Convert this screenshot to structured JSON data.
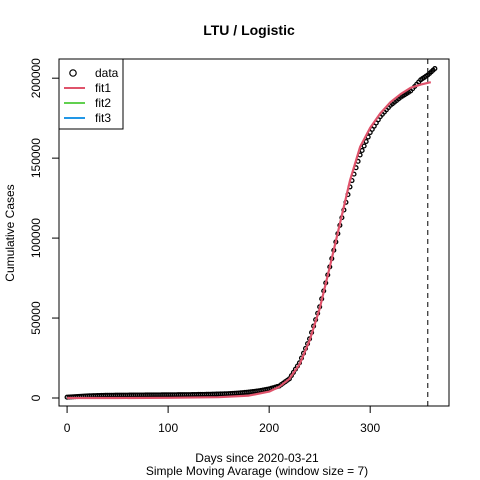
{
  "chart_data": {
    "type": "line",
    "title": "LTU / Logistic",
    "xlabel": "Days since 2020-03-21",
    "xlabel2": "Simple Moving Avarage (window size = 7)",
    "ylabel": "Cumulative Cases",
    "xlim": [
      -8,
      378
    ],
    "ylim": [
      -5000,
      212000
    ],
    "x_ticks": [
      0,
      100,
      200,
      300
    ],
    "y_ticks": [
      0,
      50000,
      100000,
      150000,
      200000
    ],
    "x_tick_labels": [
      "0",
      "100",
      "200",
      "300"
    ],
    "y_tick_labels": [
      "0",
      "50000",
      "100000",
      "150000",
      "200000"
    ],
    "vline_x": 357,
    "legend": {
      "position": "top-left",
      "entries": [
        {
          "label": "data",
          "kind": "point",
          "color": "#000000"
        },
        {
          "label": "fit1",
          "kind": "line",
          "color": "#DF536B"
        },
        {
          "label": "fit2",
          "kind": "line",
          "color": "#61D04F"
        },
        {
          "label": "fit3",
          "kind": "line",
          "color": "#2297E6"
        }
      ]
    },
    "series": [
      {
        "name": "data",
        "color": "#000000",
        "x": [
          0,
          20,
          40,
          60,
          80,
          100,
          120,
          140,
          160,
          170,
          180,
          190,
          200,
          210,
          220,
          230,
          240,
          250,
          260,
          270,
          280,
          290,
          300,
          310,
          320,
          330,
          340,
          350,
          357,
          364
        ],
        "y": [
          500,
          1300,
          1700,
          1800,
          1900,
          2000,
          2100,
          2300,
          2700,
          3100,
          3700,
          4500,
          5700,
          7500,
          12000,
          22000,
          37000,
          57000,
          82000,
          108000,
          132000,
          152000,
          166000,
          176000,
          183000,
          188000,
          192000,
          199000,
          202000,
          206000
        ]
      },
      {
        "name": "fit1",
        "color": "#DF536B",
        "x": [
          0,
          50,
          100,
          150,
          180,
          200,
          210,
          220,
          230,
          240,
          250,
          260,
          270,
          280,
          290,
          300,
          310,
          320,
          330,
          340,
          350,
          360
        ],
        "y": [
          0,
          0,
          100,
          500,
          1500,
          4000,
          7000,
          12000,
          21000,
          36000,
          56000,
          82000,
          109000,
          136000,
          157000,
          169000,
          178000,
          185000,
          190000,
          194000,
          196000,
          197500
        ]
      }
    ]
  }
}
